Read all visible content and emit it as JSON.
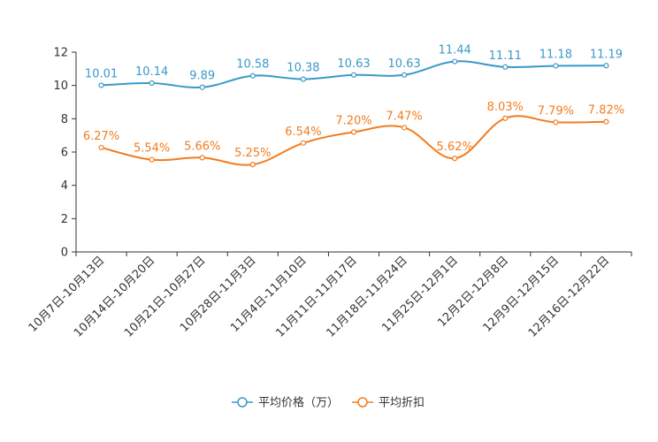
{
  "chart_data": {
    "type": "line",
    "title": "",
    "xlabel": "",
    "ylabel": "",
    "ylim": [
      0,
      12
    ],
    "yticks": [
      0,
      2,
      4,
      6,
      8,
      10,
      12
    ],
    "grid": false,
    "legend_position": "bottom-center",
    "categories": [
      "10月7日-10月13日",
      "10月14日-10月20日",
      "10月21日-10月27日",
      "10月28日-11月3日",
      "11月4日-11月10日",
      "11月11日-11月17日",
      "11月18日-11月24日",
      "11月25日-12月1日",
      "12月2日-12月8日",
      "12月9日-12月15日",
      "12月16日-12月22日"
    ],
    "series": [
      {
        "name": "平均价格（万）",
        "color": "#3b98c9",
        "values": [
          10.01,
          10.14,
          9.89,
          10.58,
          10.38,
          10.63,
          10.63,
          11.44,
          11.11,
          11.18,
          11.19
        ],
        "labels": [
          "10.01",
          "10.14",
          "9.89",
          "10.58",
          "10.38",
          "10.63",
          "10.63",
          "11.44",
          "11.11",
          "11.18",
          "11.19"
        ]
      },
      {
        "name": "平均折扣",
        "color": "#f27c1e",
        "values": [
          6.27,
          5.54,
          5.66,
          5.25,
          6.54,
          7.2,
          7.47,
          5.62,
          8.03,
          7.79,
          7.82
        ],
        "labels": [
          "6.27%",
          "5.54%",
          "5.66%",
          "5.25%",
          "6.54%",
          "7.20%",
          "7.47%",
          "5.62%",
          "8.03%",
          "7.79%",
          "7.82%"
        ]
      }
    ]
  }
}
